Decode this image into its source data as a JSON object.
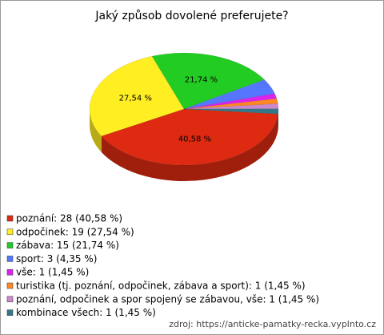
{
  "chart_data": {
    "type": "pie",
    "title": "Jaký způsob dovolené preferujete?",
    "labels": [
      "poznání: 28 (40,58 %)",
      "odpočinek: 19 (27,54 %)",
      "zábava: 15 (21,74 %)",
      "sport: 3 (4,35 %)",
      "vše: 1 (1,45 %)",
      "turistika (tj. poznání, odpočinek, zábava a sport): 1 (1,45 %)",
      "poznání, odpočinek a spor spojený  se zábavou, vše: 1 (1,45 %)",
      "kombinace všech: 1 (1,45 %)"
    ],
    "values": [
      40.58,
      27.54,
      21.74,
      4.35,
      1.45,
      1.45,
      1.45,
      1.45
    ],
    "value_labels": [
      "40,58 %",
      "27,54 %",
      "21,74 %",
      null,
      null,
      null,
      null,
      null
    ],
    "colors": [
      "#dd2a10",
      "#ffee22",
      "#22cc22",
      "#5577ff",
      "#dd22ee",
      "#ff8822",
      "#cc88cc",
      "#337788"
    ],
    "source": "zdroj: https://anticke-pamatky-recka.vyplnto.cz"
  }
}
